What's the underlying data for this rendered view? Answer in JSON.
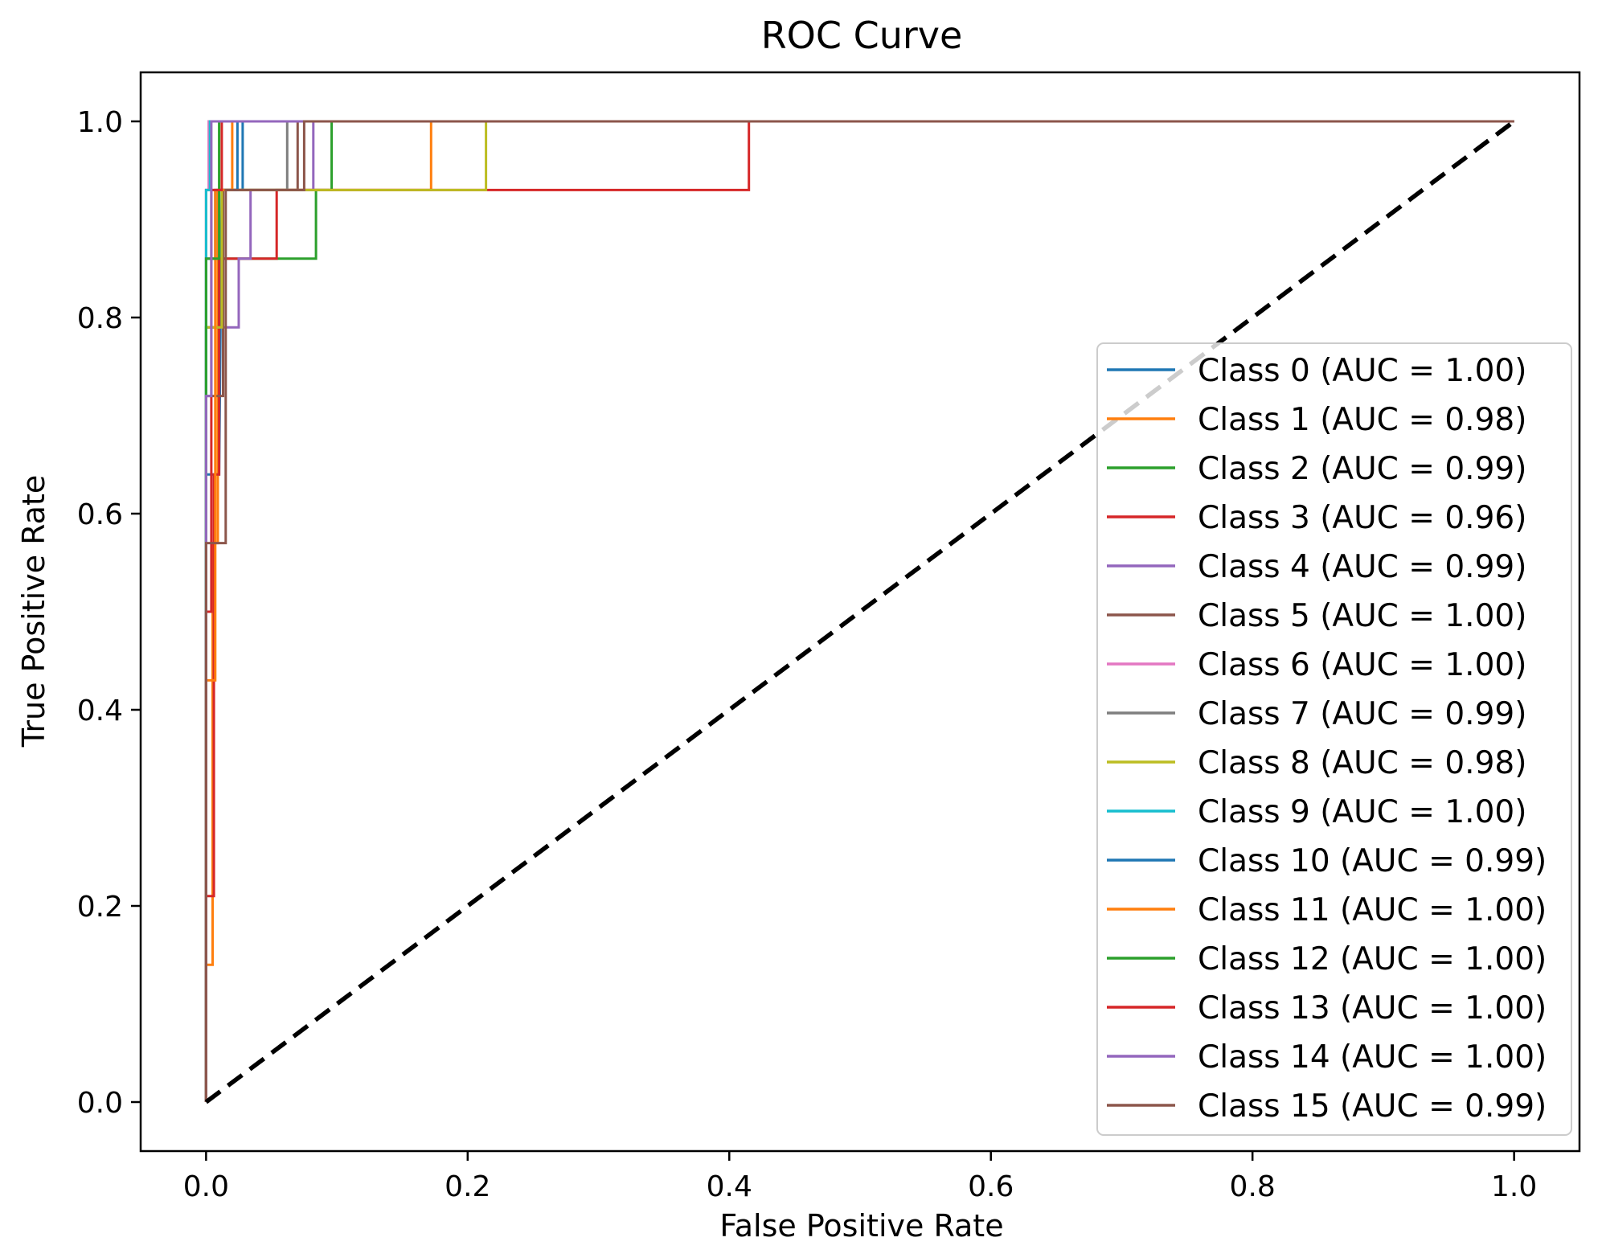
{
  "chart_data": {
    "type": "line",
    "title": "ROC Curve",
    "xlabel": "False Positive Rate",
    "ylabel": "True Positive Rate",
    "xlim": [
      -0.05,
      1.05
    ],
    "ylim": [
      -0.05,
      1.05
    ],
    "xticks": [
      0.0,
      0.2,
      0.4,
      0.6,
      0.8,
      1.0
    ],
    "xtick_labels": [
      "0.0",
      "0.2",
      "0.4",
      "0.6",
      "0.8",
      "1.0"
    ],
    "yticks": [
      0.0,
      0.2,
      0.4,
      0.6,
      0.8,
      1.0
    ],
    "ytick_labels": [
      "0.0",
      "0.2",
      "0.4",
      "0.6",
      "0.8",
      "1.0"
    ],
    "legend_position": "right",
    "diagonal": {
      "x": [
        0,
        1
      ],
      "y": [
        0,
        1
      ],
      "color": "#000000",
      "style": "dashed"
    },
    "series": [
      {
        "name": "Class 0 (AUC = 1.00)",
        "color": "#1f77b4",
        "x": [
          0,
          0,
          0.01,
          0.012,
          0.012,
          0.028,
          0.028,
          1
        ],
        "y": [
          0,
          0.64,
          0.64,
          0.93,
          0.93,
          0.93,
          1.0,
          1.0
        ]
      },
      {
        "name": "Class 1 (AUC = 0.98)",
        "color": "#ff7f0e",
        "x": [
          0,
          0,
          0.005,
          0.005,
          0.009,
          0.009,
          0.025,
          0.025,
          0.172,
          0.172,
          1
        ],
        "y": [
          0,
          0.14,
          0.14,
          0.57,
          0.57,
          0.93,
          0.93,
          0.93,
          0.93,
          1.0,
          1.0
        ]
      },
      {
        "name": "Class 2 (AUC = 0.99)",
        "color": "#2ca02c",
        "x": [
          0,
          0,
          0.01,
          0.01,
          0.084,
          0.084,
          0.096,
          0.096,
          1
        ],
        "y": [
          0,
          0.79,
          0.79,
          0.86,
          0.86,
          0.93,
          0.93,
          1.0,
          1.0
        ]
      },
      {
        "name": "Class 3 (AUC = 0.96)",
        "color": "#d62728",
        "x": [
          0,
          0,
          0.006,
          0.006,
          0.01,
          0.01,
          0.054,
          0.054,
          0.415,
          0.415,
          1
        ],
        "y": [
          0,
          0.21,
          0.21,
          0.64,
          0.64,
          0.86,
          0.86,
          0.93,
          0.93,
          1.0,
          1.0
        ]
      },
      {
        "name": "Class 4 (AUC = 0.99)",
        "color": "#9467bd",
        "x": [
          0,
          0,
          0.025,
          0.025,
          0.034,
          0.034,
          0.082,
          0.082,
          1
        ],
        "y": [
          0,
          0.79,
          0.79,
          0.86,
          0.86,
          0.93,
          0.93,
          1.0,
          1.0
        ]
      },
      {
        "name": "Class 5 (AUC = 1.00)",
        "color": "#8c564b",
        "x": [
          0,
          0,
          0.013,
          0.013,
          0.07,
          0.07,
          1
        ],
        "y": [
          0,
          0.72,
          0.72,
          0.93,
          0.93,
          1.0,
          1.0
        ]
      },
      {
        "name": "Class 6 (AUC = 1.00)",
        "color": "#e377c2",
        "x": [
          0,
          0,
          0.002,
          0.002,
          1
        ],
        "y": [
          0,
          0.93,
          0.93,
          1.0,
          1.0
        ]
      },
      {
        "name": "Class 7 (AUC = 0.99)",
        "color": "#7f7f7f",
        "x": [
          0,
          0,
          0.062,
          0.062,
          1
        ],
        "y": [
          0,
          0.93,
          0.93,
          1.0,
          1.0
        ]
      },
      {
        "name": "Class 8 (AUC = 0.98)",
        "color": "#bcbd22",
        "x": [
          0,
          0,
          0.012,
          0.012,
          0.214,
          0.214,
          1
        ],
        "y": [
          0,
          0.79,
          0.79,
          0.93,
          0.93,
          1.0,
          1.0
        ]
      },
      {
        "name": "Class 9 (AUC = 1.00)",
        "color": "#17becf",
        "x": [
          0,
          0,
          0.003,
          0.003,
          1
        ],
        "y": [
          0,
          0.93,
          0.93,
          1.0,
          1.0
        ]
      },
      {
        "name": "Class 10 (AUC = 0.99)",
        "color": "#1f77b4",
        "x": [
          0,
          0,
          0.007,
          0.007,
          0.024,
          0.024,
          1
        ],
        "y": [
          0,
          0.86,
          0.86,
          0.93,
          0.93,
          1.0,
          1.0
        ]
      },
      {
        "name": "Class 11 (AUC = 1.00)",
        "color": "#ff7f0e",
        "x": [
          0,
          0,
          0.007,
          0.007,
          0.02,
          0.02,
          1
        ],
        "y": [
          0,
          0.43,
          0.43,
          0.93,
          0.93,
          1.0,
          1.0
        ]
      },
      {
        "name": "Class 12 (AUC = 1.00)",
        "color": "#2ca02c",
        "x": [
          0,
          0,
          0.01,
          0.01,
          1
        ],
        "y": [
          0,
          0.86,
          0.86,
          1.0,
          1.0
        ]
      },
      {
        "name": "Class 13 (AUC = 1.00)",
        "color": "#d62728",
        "x": [
          0,
          0,
          0.004,
          0.004,
          0.012,
          0.012,
          1
        ],
        "y": [
          0,
          0.5,
          0.5,
          0.93,
          0.93,
          1.0,
          1.0
        ]
      },
      {
        "name": "Class 14 (AUC = 1.00)",
        "color": "#9467bd",
        "x": [
          0,
          0,
          0.004,
          0.004,
          1
        ],
        "y": [
          0,
          0.72,
          0.72,
          1.0,
          1.0
        ]
      },
      {
        "name": "Class 15 (AUC = 0.99)",
        "color": "#8c564b",
        "x": [
          0,
          0,
          0.015,
          0.015,
          0.075,
          0.075,
          1
        ],
        "y": [
          0,
          0.57,
          0.57,
          0.93,
          0.93,
          1.0,
          1.0
        ]
      }
    ]
  }
}
